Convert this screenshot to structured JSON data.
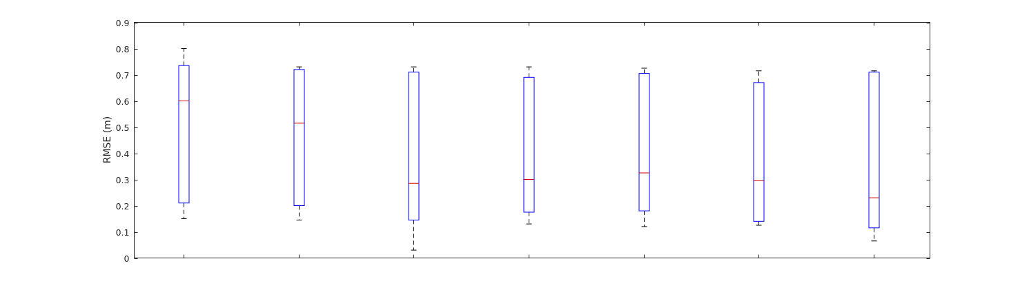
{
  "chart_data": {
    "type": "box",
    "title": "",
    "xlabel": "",
    "ylabel": "RMSE (m)",
    "ylim": [
      0,
      0.9
    ],
    "yticks": [
      0,
      0.1,
      0.2,
      0.3,
      0.4,
      0.5,
      0.6,
      0.7,
      0.8,
      0.9
    ],
    "ytick_labels": [
      "0",
      "0.1",
      "0.2",
      "0.3",
      "0.4",
      "0.5",
      "0.6",
      "0.7",
      "0.8",
      "0.9"
    ],
    "grid": false,
    "legend": "none",
    "boxes": [
      {
        "whisker_low": 0.15,
        "q1": 0.21,
        "median": 0.6,
        "q3": 0.735,
        "whisker_high": 0.8
      },
      {
        "whisker_low": 0.145,
        "q1": 0.2,
        "median": 0.515,
        "q3": 0.72,
        "whisker_high": 0.73
      },
      {
        "whisker_low": 0.03,
        "q1": 0.145,
        "median": 0.285,
        "q3": 0.71,
        "whisker_high": 0.73
      },
      {
        "whisker_low": 0.13,
        "q1": 0.175,
        "median": 0.3,
        "q3": 0.69,
        "whisker_high": 0.73
      },
      {
        "whisker_low": 0.12,
        "q1": 0.18,
        "median": 0.325,
        "q3": 0.705,
        "whisker_high": 0.725
      },
      {
        "whisker_low": 0.125,
        "q1": 0.14,
        "median": 0.295,
        "q3": 0.67,
        "whisker_high": 0.715
      },
      {
        "whisker_low": 0.065,
        "q1": 0.115,
        "median": 0.23,
        "q3": 0.71,
        "whisker_high": 0.715
      }
    ],
    "colors": {
      "box": "#0000ff",
      "median": "#cc0000",
      "whisker": "#000000",
      "axis": "#262626"
    }
  }
}
